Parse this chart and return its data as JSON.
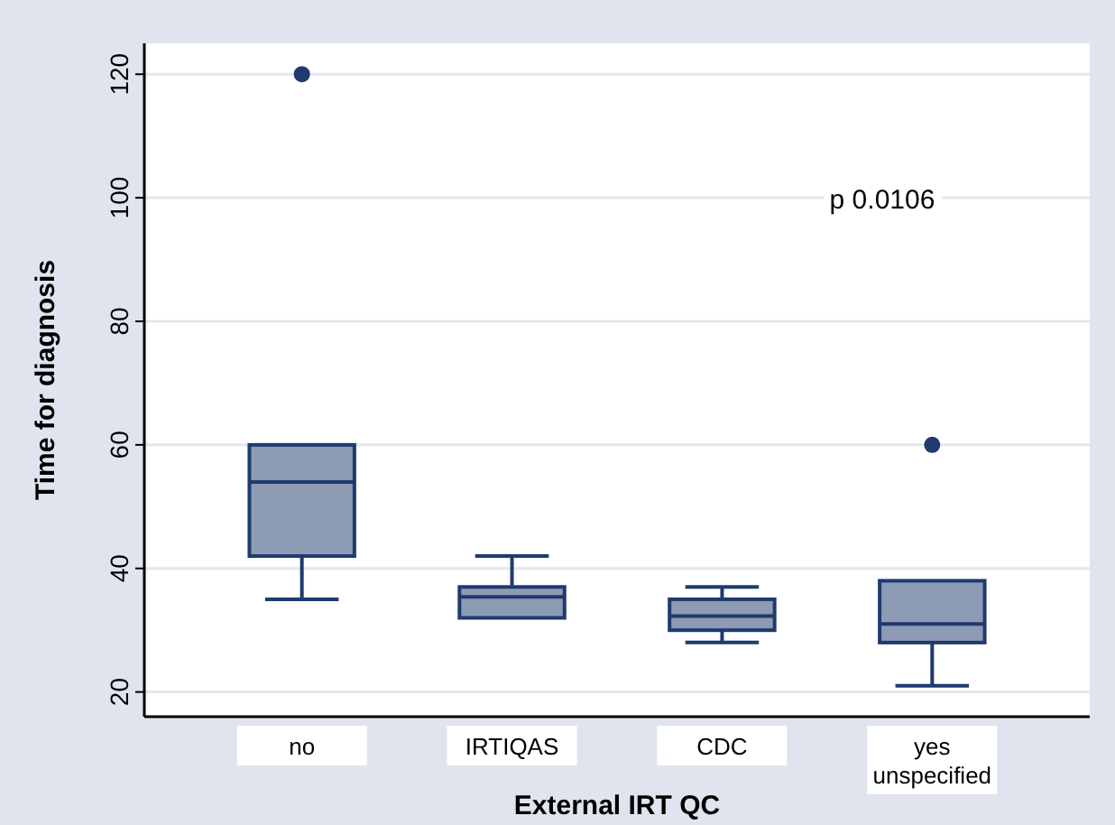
{
  "chart_data": {
    "type": "box",
    "xlabel": "External IRT QC",
    "ylabel": "Time for diagnosis",
    "categories": [
      "no",
      "IRTIQAS",
      "CDC",
      "yes\nunspecified"
    ],
    "color": "#8e9bb5",
    "ylim": [
      16,
      125
    ],
    "yticks": [
      20,
      40,
      60,
      80,
      100,
      120
    ],
    "grid": "y",
    "annotations": [
      "p 0.0106"
    ],
    "boxes": [
      {
        "low": 35,
        "q1": 42,
        "median": 54,
        "q3": 60,
        "high": 60,
        "outliers": [
          120
        ]
      },
      {
        "low": 32,
        "q1": 32,
        "median": 35.4,
        "q3": 37,
        "high": 42
      },
      {
        "low": 28,
        "q1": 30,
        "median": 32.3,
        "q3": 35,
        "high": 37
      },
      {
        "low": 21,
        "q1": 28,
        "median": 31,
        "q3": 38,
        "high": 38,
        "outliers": [
          60
        ]
      }
    ]
  }
}
